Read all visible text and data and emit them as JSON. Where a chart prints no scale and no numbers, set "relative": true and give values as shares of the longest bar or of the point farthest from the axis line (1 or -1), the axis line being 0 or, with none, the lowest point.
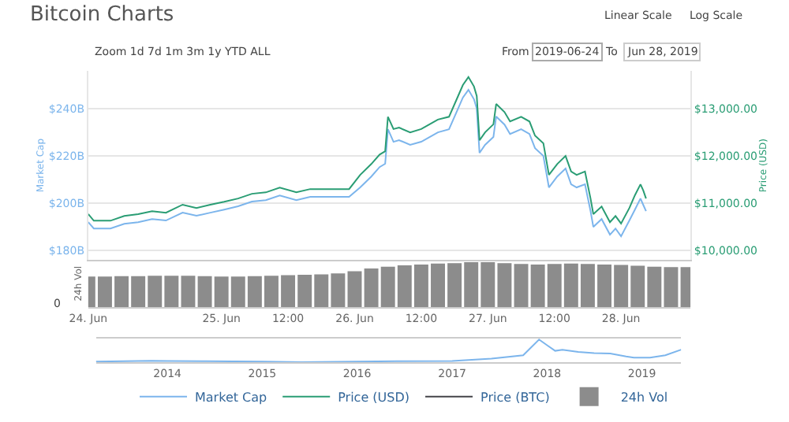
{
  "chart_data": [
    {
      "type": "line",
      "title": "Bitcoin Charts",
      "ylabel": "Market Cap",
      "y2label": "Price (USD)",
      "annotations": [
        "Zoom 1d 7d 1m 3m 1y YTD ALL",
        "From",
        "2019-06-24",
        "To",
        "Jun 28, 2019",
        "Linear Scale",
        "Log Scale"
      ],
      "x": [
        "2019-06-24T00:00",
        "2019-06-24T01:00",
        "2019-06-24T04:00",
        "2019-06-24T06:30",
        "2019-06-24T09:00",
        "2019-06-24T11:30",
        "2019-06-24T14:00",
        "2019-06-24T17:00",
        "2019-06-24T19:30",
        "2019-06-24T22:00",
        "2019-06-25T00:30",
        "2019-06-25T03:00",
        "2019-06-25T05:30",
        "2019-06-25T08:00",
        "2019-06-25T10:30",
        "2019-06-25T13:30",
        "2019-06-25T16:00",
        "2019-06-25T18:30",
        "2019-06-25T23:00",
        "2019-06-26T01:00",
        "2019-06-26T03:00",
        "2019-06-26T04:30",
        "2019-06-26T05:30",
        "2019-06-26T06:00",
        "2019-06-26T07:00",
        "2019-06-26T08:00",
        "2019-06-26T10:00",
        "2019-06-26T12:00",
        "2019-06-26T13:30",
        "2019-06-26T15:00",
        "2019-06-26T17:00",
        "2019-06-26T18:30",
        "2019-06-26T19:30",
        "2019-06-26T20:30",
        "2019-06-26T21:30",
        "2019-06-26T22:00",
        "2019-06-26T22:30",
        "2019-06-26T23:30",
        "2019-06-27T01:00",
        "2019-06-27T01:30",
        "2019-06-27T03:00",
        "2019-06-27T04:00",
        "2019-06-27T06:00",
        "2019-06-27T07:30",
        "2019-06-27T08:30",
        "2019-06-27T10:00",
        "2019-06-27T11:00",
        "2019-06-27T12:30",
        "2019-06-27T14:00",
        "2019-06-27T15:00",
        "2019-06-27T16:00",
        "2019-06-27T17:30",
        "2019-06-27T18:30",
        "2019-06-27T19:00",
        "2019-06-27T20:30",
        "2019-06-27T22:00",
        "2019-06-27T23:00",
        "2019-06-28T00:00",
        "2019-06-28T01:30",
        "2019-06-28T02:30",
        "2019-06-28T03:30",
        "2019-06-28T04:00",
        "2019-06-28T04:30"
      ],
      "series": [
        {
          "name": "Market Cap",
          "color": "#7cb5ec",
          "values": [
            192.0,
            189.3,
            189.3,
            191.3,
            192.0,
            193.3,
            192.7,
            196.0,
            194.7,
            196.0,
            197.3,
            198.7,
            200.7,
            201.3,
            203.3,
            201.3,
            202.7,
            202.7,
            202.7,
            206.7,
            211.3,
            215.3,
            216.7,
            231.3,
            226.0,
            226.7,
            224.7,
            226.0,
            228.0,
            230.0,
            231.3,
            239.3,
            244.7,
            248.0,
            244.0,
            240.0,
            221.3,
            224.7,
            228.0,
            236.7,
            233.3,
            229.3,
            231.3,
            229.3,
            223.3,
            220.0,
            206.7,
            211.3,
            214.7,
            208.0,
            206.7,
            208.0,
            196.7,
            190.0,
            193.3,
            186.7,
            189.3,
            186.0,
            192.7,
            197.3,
            202.0,
            199.3,
            196.7
          ]
        },
        {
          "name": "Price (USD)",
          "color": "#2a9d74",
          "axis": "y2",
          "values": [
            10770,
            10630,
            10630,
            10730,
            10770,
            10830,
            10800,
            10970,
            10900,
            10970,
            11030,
            11100,
            11200,
            11230,
            11330,
            11230,
            11300,
            11300,
            11300,
            11600,
            11830,
            12030,
            12100,
            12830,
            12570,
            12600,
            12500,
            12570,
            12670,
            12770,
            12830,
            13230,
            13500,
            13670,
            13470,
            13270,
            12330,
            12500,
            12670,
            13100,
            12930,
            12730,
            12830,
            12730,
            12430,
            12270,
            11600,
            11830,
            12000,
            11670,
            11600,
            11670,
            11100,
            10770,
            10930,
            10600,
            10730,
            10570,
            10900,
            11170,
            11400,
            11270,
            11100
          ]
        },
        {
          "name": "Price (BTC)",
          "color": "#434348",
          "values": [
            null,
            null,
            null,
            null,
            null,
            null,
            null,
            null,
            null,
            null,
            null,
            null,
            null,
            null,
            null,
            null,
            null,
            null,
            null,
            null,
            null,
            null,
            null,
            null,
            null,
            null,
            null,
            null,
            null,
            null,
            null,
            null,
            null,
            null,
            null,
            null,
            null,
            null,
            null,
            null,
            null,
            null,
            null,
            null,
            null,
            null,
            null,
            null,
            null,
            null,
            null,
            null,
            null,
            null,
            null,
            null,
            null,
            null,
            null,
            null,
            null,
            null,
            null
          ]
        }
      ],
      "xlim": [
        "2019-06-24T00:00",
        "2019-06-28T12:30"
      ],
      "ylim": [
        176,
        256
      ],
      "yticks": [
        {
          "value": 180,
          "label": "$180B"
        },
        {
          "value": 200,
          "label": "$200B"
        },
        {
          "value": 220,
          "label": "$220B"
        },
        {
          "value": 240,
          "label": "$240B"
        }
      ],
      "y2lim": [
        9800,
        13800
      ],
      "y2ticks": [
        {
          "value": 10000,
          "label": "$10,000.00"
        },
        {
          "value": 11000,
          "label": "$11,000.00"
        },
        {
          "value": 12000,
          "label": "$12,000.00"
        },
        {
          "value": 13000,
          "label": "$13,000.00"
        }
      ],
      "grid": "y",
      "legend": "bottom",
      "tick_labels": "y"
    },
    {
      "type": "bar",
      "relative": true,
      "ylabel": "24h Vol",
      "annotations": [
        "0"
      ],
      "x": [
        "2019-06-24T00:00",
        "2019-06-24T03:00",
        "2019-06-24T06:00",
        "2019-06-24T09:00",
        "2019-06-24T12:00",
        "2019-06-24T15:00",
        "2019-06-24T18:00",
        "2019-06-24T21:00",
        "2019-06-25T00:00",
        "2019-06-25T03:00",
        "2019-06-25T06:00",
        "2019-06-25T09:00",
        "2019-06-25T12:00",
        "2019-06-25T15:00",
        "2019-06-25T18:00",
        "2019-06-25T21:00",
        "2019-06-26T00:00",
        "2019-06-26T03:00",
        "2019-06-26T06:00",
        "2019-06-26T09:00",
        "2019-06-26T12:00",
        "2019-06-26T15:00",
        "2019-06-26T18:00",
        "2019-06-26T21:00",
        "2019-06-27T00:00",
        "2019-06-27T03:00",
        "2019-06-27T06:00",
        "2019-06-27T09:00",
        "2019-06-27T12:00",
        "2019-06-27T15:00",
        "2019-06-27T18:00",
        "2019-06-27T21:00",
        "2019-06-28T00:00",
        "2019-06-28T03:00",
        "2019-06-28T06:00",
        "2019-06-28T09:00",
        "2019-06-28T12:00"
      ],
      "series": [
        {
          "name": "24h Vol",
          "color": "#8c8c8c",
          "values": [
            0.68,
            0.68,
            0.69,
            0.69,
            0.7,
            0.7,
            0.7,
            0.69,
            0.68,
            0.68,
            0.69,
            0.7,
            0.71,
            0.72,
            0.73,
            0.75,
            0.8,
            0.86,
            0.9,
            0.93,
            0.95,
            0.97,
            0.98,
            1.0,
            1.0,
            0.98,
            0.96,
            0.95,
            0.96,
            0.97,
            0.96,
            0.95,
            0.94,
            0.92,
            0.9,
            0.89,
            0.89
          ]
        }
      ],
      "xlim": [
        "2019-06-24T00:00",
        "2019-06-28T12:30"
      ],
      "xticks": [
        {
          "value": "2019-06-24T00:00",
          "label": "24. Jun"
        },
        {
          "value": "2019-06-25T00:00",
          "label": "25. Jun"
        },
        {
          "value": "2019-06-25T12:00",
          "label": "12:00"
        },
        {
          "value": "2019-06-26T00:00",
          "label": "26. Jun"
        },
        {
          "value": "2019-06-26T12:00",
          "label": "12:00"
        },
        {
          "value": "2019-06-27T00:00",
          "label": "27. Jun"
        },
        {
          "value": "2019-06-27T12:00",
          "label": "12:00"
        },
        {
          "value": "2019-06-28T00:00",
          "label": "28. Jun"
        }
      ],
      "legend": "bottom",
      "tick_labels": "x"
    },
    {
      "type": "line",
      "relative": true,
      "x": [
        "2013-04",
        "2013-11",
        "2014-01",
        "2014-06",
        "2015-01",
        "2015-06",
        "2016-01",
        "2016-06",
        "2017-01",
        "2017-06",
        "2017-10",
        "2017-12",
        "2018-01",
        "2018-02",
        "2018-03",
        "2018-05",
        "2018-07",
        "2018-09",
        "2018-11",
        "2018-12",
        "2019-02",
        "2019-04",
        "2019-06"
      ],
      "series": [
        {
          "color": "#7cb5ec",
          "values": [
            0.02,
            0.06,
            0.05,
            0.04,
            0.02,
            0.0,
            0.02,
            0.04,
            0.05,
            0.15,
            0.3,
            1.0,
            0.75,
            0.5,
            0.55,
            0.45,
            0.4,
            0.38,
            0.25,
            0.2,
            0.2,
            0.3,
            0.55
          ]
        }
      ],
      "xlim": [
        "2013-04",
        "2019-06"
      ],
      "xticks": [
        {
          "value": "2014-01",
          "label": "2014"
        },
        {
          "value": "2015-01",
          "label": "2015"
        },
        {
          "value": "2016-01",
          "label": "2016"
        },
        {
          "value": "2017-01",
          "label": "2017"
        },
        {
          "value": "2018-01",
          "label": "2018"
        },
        {
          "value": "2019-01",
          "label": "2019"
        }
      ],
      "tick_labels": "x"
    }
  ]
}
